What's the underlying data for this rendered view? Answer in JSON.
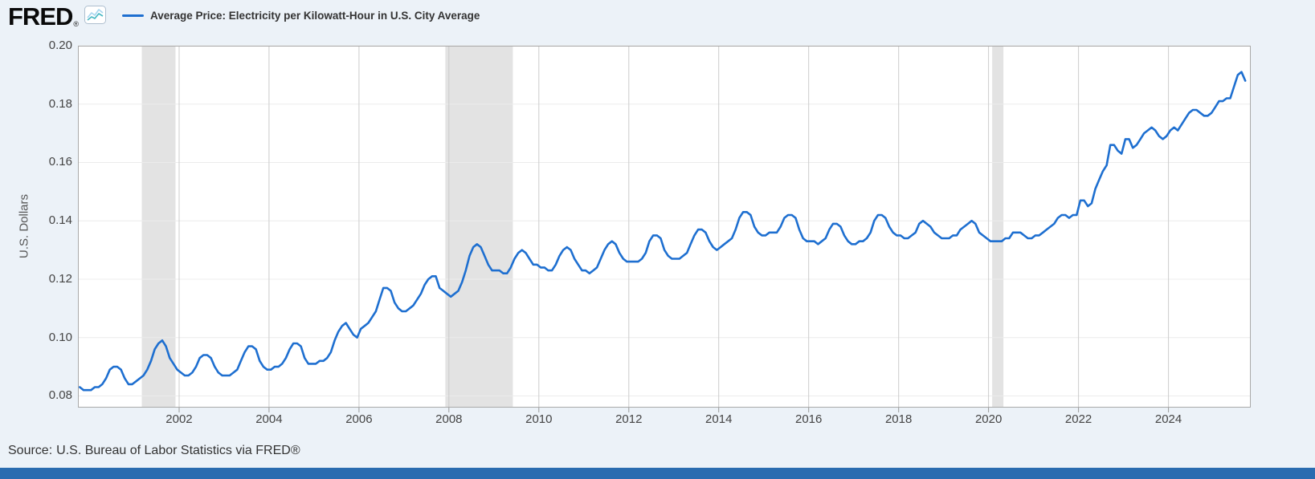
{
  "header": {
    "logo_text": "FRED",
    "registered_mark": "®",
    "legend": {
      "label": "Average Price: Electricity per Kilowatt-Hour in U.S. City Average",
      "line_color": "#1e6fd0"
    }
  },
  "footer": {
    "source_label": "Source:",
    "source_link": "U.S. Bureau of Labor Statistics via FRED®"
  },
  "chart_data": {
    "type": "line",
    "title": "Average Price: Electricity per Kilowatt-Hour in U.S. City Average",
    "ylabel": "U.S. Dollars",
    "xlabel": "",
    "frequency": "Monthly",
    "line_color": "#1e6fd0",
    "recession_color": "#e3e3e3",
    "grid_color": "#cccccc",
    "xlim": [
      1999.75,
      2025.83
    ],
    "ylim": [
      0.076,
      0.2
    ],
    "x_ticks": [
      2002,
      2004,
      2006,
      2008,
      2010,
      2012,
      2014,
      2016,
      2018,
      2020,
      2022,
      2024
    ],
    "y_ticks": [
      0.08,
      0.1,
      0.12,
      0.14,
      0.16,
      0.18,
      0.2
    ],
    "y_tick_labels": [
      "0.08",
      "0.10",
      "0.12",
      "0.14",
      "0.16",
      "0.18",
      "0.20"
    ],
    "recessions": [
      [
        2001.17,
        2001.92
      ],
      [
        2007.92,
        2009.42
      ],
      [
        2020.08,
        2020.33
      ]
    ],
    "start": {
      "year": 1999,
      "month": 10
    },
    "values": [
      0.083,
      0.082,
      0.082,
      0.082,
      0.083,
      0.083,
      0.084,
      0.086,
      0.089,
      0.09,
      0.09,
      0.089,
      0.086,
      0.084,
      0.084,
      0.085,
      0.086,
      0.087,
      0.089,
      0.092,
      0.096,
      0.098,
      0.099,
      0.097,
      0.093,
      0.091,
      0.089,
      0.088,
      0.087,
      0.087,
      0.088,
      0.09,
      0.093,
      0.094,
      0.094,
      0.093,
      0.09,
      0.088,
      0.087,
      0.087,
      0.087,
      0.088,
      0.089,
      0.092,
      0.095,
      0.097,
      0.097,
      0.096,
      0.092,
      0.09,
      0.089,
      0.089,
      0.09,
      0.09,
      0.091,
      0.093,
      0.096,
      0.098,
      0.098,
      0.097,
      0.093,
      0.091,
      0.091,
      0.091,
      0.092,
      0.092,
      0.093,
      0.095,
      0.099,
      0.102,
      0.104,
      0.105,
      0.103,
      0.101,
      0.1,
      0.103,
      0.104,
      0.105,
      0.107,
      0.109,
      0.113,
      0.117,
      0.117,
      0.116,
      0.112,
      0.11,
      0.109,
      0.109,
      0.11,
      0.111,
      0.113,
      0.115,
      0.118,
      0.12,
      0.121,
      0.121,
      0.117,
      0.116,
      0.115,
      0.114,
      0.115,
      0.116,
      0.119,
      0.123,
      0.128,
      0.131,
      0.132,
      0.131,
      0.128,
      0.125,
      0.123,
      0.123,
      0.123,
      0.122,
      0.122,
      0.124,
      0.127,
      0.129,
      0.13,
      0.129,
      0.127,
      0.125,
      0.125,
      0.124,
      0.124,
      0.123,
      0.123,
      0.125,
      0.128,
      0.13,
      0.131,
      0.13,
      0.127,
      0.125,
      0.123,
      0.123,
      0.122,
      0.123,
      0.124,
      0.127,
      0.13,
      0.132,
      0.133,
      0.132,
      0.129,
      0.127,
      0.126,
      0.126,
      0.126,
      0.126,
      0.127,
      0.129,
      0.133,
      0.135,
      0.135,
      0.134,
      0.13,
      0.128,
      0.127,
      0.127,
      0.127,
      0.128,
      0.129,
      0.132,
      0.135,
      0.137,
      0.137,
      0.136,
      0.133,
      0.131,
      0.13,
      0.131,
      0.132,
      0.133,
      0.134,
      0.137,
      0.141,
      0.143,
      0.143,
      0.142,
      0.138,
      0.136,
      0.135,
      0.135,
      0.136,
      0.136,
      0.136,
      0.138,
      0.141,
      0.142,
      0.142,
      0.141,
      0.137,
      0.134,
      0.133,
      0.133,
      0.133,
      0.132,
      0.133,
      0.134,
      0.137,
      0.139,
      0.139,
      0.138,
      0.135,
      0.133,
      0.132,
      0.132,
      0.133,
      0.133,
      0.134,
      0.136,
      0.14,
      0.142,
      0.142,
      0.141,
      0.138,
      0.136,
      0.135,
      0.135,
      0.134,
      0.134,
      0.135,
      0.136,
      0.139,
      0.14,
      0.139,
      0.138,
      0.136,
      0.135,
      0.134,
      0.134,
      0.134,
      0.135,
      0.135,
      0.137,
      0.138,
      0.139,
      0.14,
      0.139,
      0.136,
      0.135,
      0.134,
      0.133,
      0.133,
      0.133,
      0.133,
      0.134,
      0.134,
      0.136,
      0.136,
      0.136,
      0.135,
      0.134,
      0.134,
      0.135,
      0.135,
      0.136,
      0.137,
      0.138,
      0.139,
      0.141,
      0.142,
      0.142,
      0.141,
      0.142,
      0.142,
      0.147,
      0.147,
      0.145,
      0.146,
      0.151,
      0.154,
      0.157,
      0.159,
      0.166,
      0.166,
      0.164,
      0.163,
      0.168,
      0.168,
      0.165,
      0.166,
      0.168,
      0.17,
      0.171,
      0.172,
      0.171,
      0.169,
      0.168,
      0.169,
      0.171,
      0.172,
      0.171,
      0.173,
      0.175,
      0.177,
      0.178,
      0.178,
      0.177,
      0.176,
      0.176,
      0.177,
      0.179,
      0.181,
      0.181,
      0.182,
      0.182,
      0.186,
      0.19,
      0.191,
      0.188
    ]
  }
}
